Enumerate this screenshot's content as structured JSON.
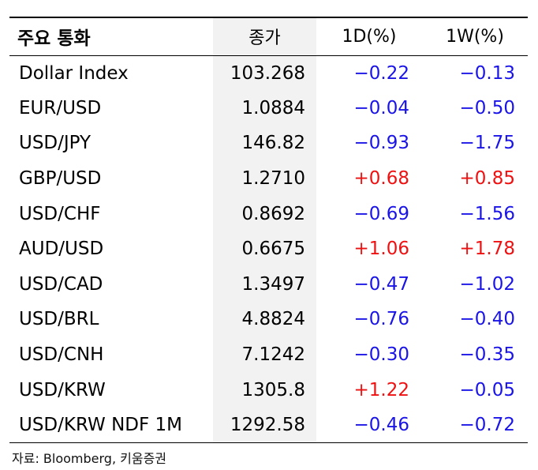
{
  "table": {
    "headers": {
      "name": "주요 통화",
      "close": "종가",
      "d1": "1D(%)",
      "w1": "1W(%)"
    },
    "rows": [
      {
        "name": "Dollar Index",
        "close": "103.268",
        "d1": "−0.22",
        "w1": "−0.13",
        "d1_sign": "neg",
        "w1_sign": "neg"
      },
      {
        "name": "EUR/USD",
        "close": "1.0884",
        "d1": "−0.04",
        "w1": "−0.50",
        "d1_sign": "neg",
        "w1_sign": "neg"
      },
      {
        "name": "USD/JPY",
        "close": "146.82",
        "d1": "−0.93",
        "w1": "−1.75",
        "d1_sign": "neg",
        "w1_sign": "neg"
      },
      {
        "name": "GBP/USD",
        "close": "1.2710",
        "d1": "+0.68",
        "w1": "+0.85",
        "d1_sign": "pos",
        "w1_sign": "pos"
      },
      {
        "name": "USD/CHF",
        "close": "0.8692",
        "d1": "−0.69",
        "w1": "−1.56",
        "d1_sign": "neg",
        "w1_sign": "neg"
      },
      {
        "name": "AUD/USD",
        "close": "0.6675",
        "d1": "+1.06",
        "w1": "+1.78",
        "d1_sign": "pos",
        "w1_sign": "pos"
      },
      {
        "name": "USD/CAD",
        "close": "1.3497",
        "d1": "−0.47",
        "w1": "−1.02",
        "d1_sign": "neg",
        "w1_sign": "neg"
      },
      {
        "name": "USD/BRL",
        "close": "4.8824",
        "d1": "−0.76",
        "w1": "−0.40",
        "d1_sign": "neg",
        "w1_sign": "neg"
      },
      {
        "name": "USD/CNH",
        "close": "7.1242",
        "d1": "−0.30",
        "w1": "−0.35",
        "d1_sign": "neg",
        "w1_sign": "neg"
      },
      {
        "name": "USD/KRW",
        "close": "1305.8",
        "d1": "+1.22",
        "w1": "−0.05",
        "d1_sign": "pos",
        "w1_sign": "neg"
      },
      {
        "name": "USD/KRW NDF 1M",
        "close": "1292.58",
        "d1": "−0.46",
        "w1": "−0.72",
        "d1_sign": "neg",
        "w1_sign": "neg"
      }
    ]
  },
  "colors": {
    "negative": "#1a14e6",
    "positive": "#ee1111",
    "close_column_bg": "#f2f2f2"
  },
  "source": "자료: Bloomberg, 키움증권"
}
